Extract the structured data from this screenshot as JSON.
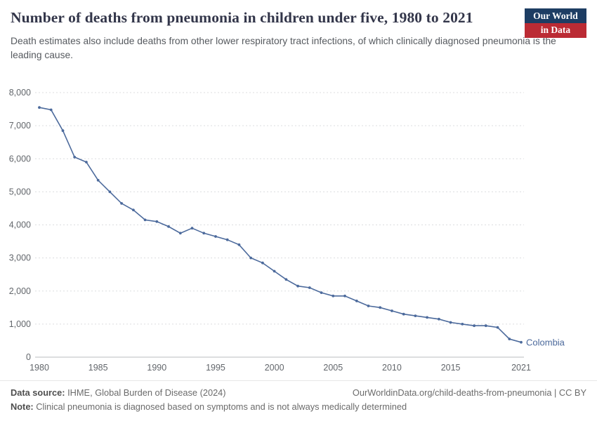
{
  "header": {
    "title": "Number of deaths from pneumonia in children under five, 1980 to 2021",
    "subtitle": "Death estimates also include deaths from other lower respiratory tract infections, of which clinically diagnosed pneumonia is the leading cause.",
    "logo": {
      "line1": "Our World",
      "line2": "in Data"
    }
  },
  "chart_data": {
    "type": "line",
    "title": "Number of deaths from pneumonia in children under five, 1980 to 2021",
    "xlabel": "",
    "ylabel": "",
    "xlim": [
      1980,
      2021
    ],
    "ylim": [
      0,
      8000
    ],
    "grid": "horizontal-dashed",
    "legend_position": "end-of-line-label",
    "x_ticks": [
      1980,
      1985,
      1990,
      1995,
      2000,
      2005,
      2010,
      2015,
      2021
    ],
    "y_ticks": [
      0,
      1000,
      2000,
      3000,
      4000,
      5000,
      6000,
      7000,
      8000
    ],
    "line_color": "#4c6a9c",
    "series": [
      {
        "name": "Colombia",
        "x": [
          1980,
          1981,
          1982,
          1983,
          1984,
          1985,
          1986,
          1987,
          1988,
          1989,
          1990,
          1991,
          1992,
          1993,
          1994,
          1995,
          1996,
          1997,
          1998,
          1999,
          2000,
          2001,
          2002,
          2003,
          2004,
          2005,
          2006,
          2007,
          2008,
          2009,
          2010,
          2011,
          2012,
          2013,
          2014,
          2015,
          2016,
          2017,
          2018,
          2019,
          2020,
          2021
        ],
        "values": [
          7550,
          7480,
          6850,
          6050,
          5900,
          5350,
          5000,
          4650,
          4450,
          4150,
          4100,
          3950,
          3750,
          3900,
          3750,
          3650,
          3550,
          3400,
          3000,
          2850,
          2600,
          2350,
          2150,
          2100,
          1950,
          1850,
          1850,
          1700,
          1550,
          1500,
          1400,
          1300,
          1250,
          1200,
          1150,
          1050,
          1000,
          950,
          950,
          900,
          550,
          450
        ]
      }
    ],
    "end_label": "Colombia"
  },
  "footer": {
    "datasource_label": "Data source:",
    "datasource_text": " IHME, Global Burden of Disease (2024)",
    "right_text": "OurWorldinData.org/child-deaths-from-pneumonia | CC BY",
    "note_label": "Note:",
    "note_text": " Clinical pneumonia is diagnosed based on symptoms and is not always medically determined"
  }
}
